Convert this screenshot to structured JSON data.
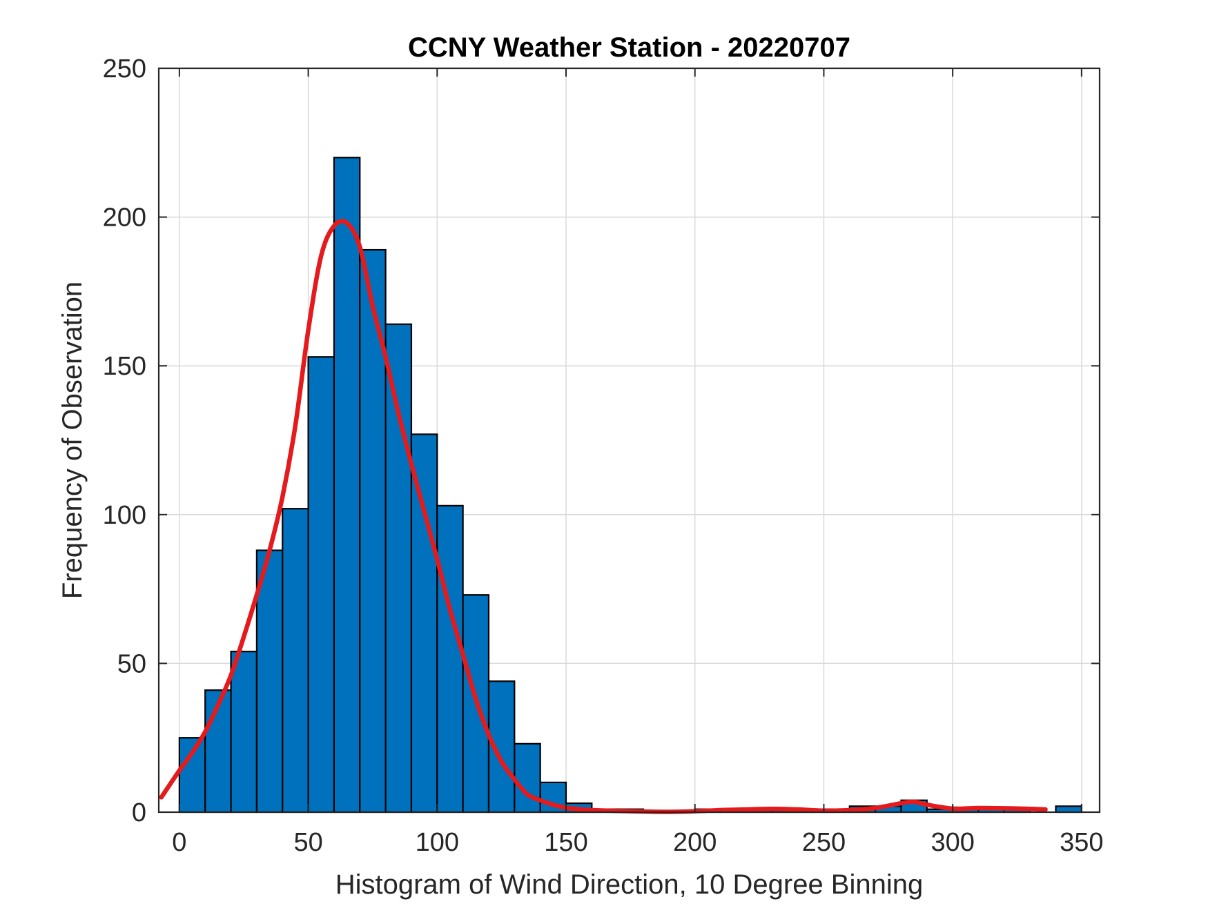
{
  "chart_data": {
    "type": "bar",
    "title": "CCNY Weather Station - 20220707",
    "xlabel": "Histogram of Wind Direction, 10 Degree Binning",
    "ylabel": "Frequency of Observation",
    "xlim": [
      -8,
      357
    ],
    "ylim": [
      0,
      250
    ],
    "grid": true,
    "bin_width": 10,
    "bins": [
      {
        "x0": 0,
        "x1": 10,
        "value": 25
      },
      {
        "x0": 10,
        "x1": 20,
        "value": 41
      },
      {
        "x0": 20,
        "x1": 30,
        "value": 54
      },
      {
        "x0": 30,
        "x1": 40,
        "value": 88
      },
      {
        "x0": 40,
        "x1": 50,
        "value": 102
      },
      {
        "x0": 50,
        "x1": 60,
        "value": 153
      },
      {
        "x0": 60,
        "x1": 70,
        "value": 220
      },
      {
        "x0": 70,
        "x1": 80,
        "value": 189
      },
      {
        "x0": 80,
        "x1": 90,
        "value": 164
      },
      {
        "x0": 90,
        "x1": 100,
        "value": 127
      },
      {
        "x0": 100,
        "x1": 110,
        "value": 103
      },
      {
        "x0": 110,
        "x1": 120,
        "value": 73
      },
      {
        "x0": 120,
        "x1": 130,
        "value": 44
      },
      {
        "x0": 130,
        "x1": 140,
        "value": 23
      },
      {
        "x0": 140,
        "x1": 150,
        "value": 10
      },
      {
        "x0": 150,
        "x1": 160,
        "value": 3
      },
      {
        "x0": 160,
        "x1": 170,
        "value": 1
      },
      {
        "x0": 170,
        "x1": 180,
        "value": 1
      },
      {
        "x0": 180,
        "x1": 190,
        "value": 0
      },
      {
        "x0": 190,
        "x1": 200,
        "value": 0
      },
      {
        "x0": 200,
        "x1": 210,
        "value": 1
      },
      {
        "x0": 210,
        "x1": 220,
        "value": 1
      },
      {
        "x0": 220,
        "x1": 230,
        "value": 1
      },
      {
        "x0": 230,
        "x1": 240,
        "value": 1
      },
      {
        "x0": 240,
        "x1": 250,
        "value": 1
      },
      {
        "x0": 250,
        "x1": 260,
        "value": 1
      },
      {
        "x0": 260,
        "x1": 270,
        "value": 2
      },
      {
        "x0": 270,
        "x1": 280,
        "value": 2
      },
      {
        "x0": 280,
        "x1": 290,
        "value": 4
      },
      {
        "x0": 290,
        "x1": 300,
        "value": 1
      },
      {
        "x0": 300,
        "x1": 310,
        "value": 1
      },
      {
        "x0": 310,
        "x1": 320,
        "value": 1
      },
      {
        "x0": 320,
        "x1": 330,
        "value": 1
      },
      {
        "x0": 330,
        "x1": 340,
        "value": 0
      },
      {
        "x0": 340,
        "x1": 350,
        "value": 2
      }
    ],
    "fit_curve": {
      "x": [
        -7,
        0,
        5,
        10,
        15,
        20,
        25,
        30,
        35,
        40,
        45,
        50,
        55,
        60,
        65,
        70,
        75,
        80,
        85,
        90,
        95,
        100,
        105,
        110,
        115,
        120,
        125,
        130,
        135,
        140,
        145,
        150,
        155,
        160,
        170,
        180,
        190,
        200,
        210,
        220,
        230,
        240,
        250,
        260,
        270,
        280,
        285,
        290,
        300,
        310,
        320,
        330,
        336
      ],
      "y": [
        5,
        14,
        20,
        27,
        36,
        46,
        59,
        73,
        88,
        106,
        130,
        162,
        187,
        197,
        198,
        190,
        170,
        153,
        134,
        117,
        101,
        85,
        68,
        53,
        38,
        26,
        17,
        11,
        6,
        4,
        2.5,
        1.5,
        1,
        0.7,
        0.4,
        0.2,
        0.1,
        0.3,
        0.7,
        0.9,
        1.1,
        0.9,
        0.5,
        0.7,
        1.4,
        3,
        3.5,
        2.5,
        1.2,
        1.4,
        1.3,
        1.1,
        0.9
      ],
      "color": "#e41a1c"
    },
    "xticks": [
      0,
      50,
      100,
      150,
      200,
      250,
      300,
      350
    ],
    "yticks": [
      0,
      50,
      100,
      150,
      200,
      250
    ],
    "colors": {
      "bar_fill": "#0072bd",
      "bar_edge": "#000000",
      "grid": "#d9d9d9",
      "axis": "#262626"
    }
  }
}
